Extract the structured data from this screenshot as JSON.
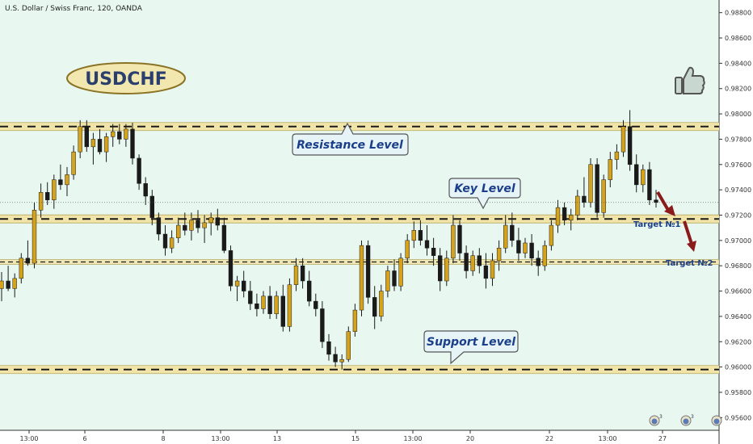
{
  "chart_data": {
    "type": "candlestick",
    "title": "U.S. Dollar / Swiss Franc, 120, OANDA",
    "symbol_badge": "USDCHF",
    "ylim": [
      0.955,
      0.989
    ],
    "y_ticks": [
      "0.98800",
      "0.98600",
      "0.98400",
      "0.98200",
      "0.98000",
      "0.97800",
      "0.97600",
      "0.97400",
      "0.97200",
      "0.97000",
      "0.96800",
      "0.96600",
      "0.96400",
      "0.96200",
      "0.96000",
      "0.95800",
      "0.95600"
    ],
    "x_ticks": [
      "13:00",
      "6",
      "8",
      "13:00",
      "13",
      "15",
      "13:00",
      "20",
      "22",
      "13:00",
      "27"
    ],
    "current_price": 0.973,
    "levels": [
      {
        "name": "Resistance Level",
        "value": 0.979
      },
      {
        "name": "Key Level",
        "value": 0.9717
      },
      {
        "name": "Support Level",
        "value": 0.9598
      },
      {
        "name": "",
        "value": 0.9683
      }
    ],
    "targets": [
      {
        "label": "Target №1",
        "value": 0.9717
      },
      {
        "label": "Target №2",
        "value": 0.9683
      }
    ],
    "colors": {
      "bull": "#d4a21c",
      "bear": "#1a1a1a",
      "background": "#e8f8f1",
      "band": "#f0e4a8",
      "arrow": "#8b1a1a"
    },
    "icon": "thumbs-up-icon",
    "event_badge_count": "3",
    "candles_ohlc": [
      [
        0.9662,
        0.9675,
        0.9652,
        0.9668
      ],
      [
        0.9668,
        0.968,
        0.966,
        0.9662
      ],
      [
        0.9662,
        0.9674,
        0.9655,
        0.967
      ],
      [
        0.967,
        0.969,
        0.9666,
        0.9686
      ],
      [
        0.9686,
        0.97,
        0.968,
        0.9682
      ],
      [
        0.9682,
        0.973,
        0.9678,
        0.9724
      ],
      [
        0.9724,
        0.9745,
        0.9718,
        0.9738
      ],
      [
        0.9738,
        0.9746,
        0.9728,
        0.9732
      ],
      [
        0.9732,
        0.9752,
        0.9725,
        0.9748
      ],
      [
        0.9748,
        0.976,
        0.974,
        0.9744
      ],
      [
        0.9744,
        0.9758,
        0.9735,
        0.9752
      ],
      [
        0.9752,
        0.9775,
        0.9748,
        0.977
      ],
      [
        0.977,
        0.9795,
        0.9765,
        0.979
      ],
      [
        0.979,
        0.9795,
        0.977,
        0.9774
      ],
      [
        0.9774,
        0.9785,
        0.976,
        0.978
      ],
      [
        0.978,
        0.9788,
        0.9768,
        0.977
      ],
      [
        0.977,
        0.9785,
        0.9762,
        0.9782
      ],
      [
        0.9782,
        0.9792,
        0.9774,
        0.9786
      ],
      [
        0.9786,
        0.9792,
        0.9776,
        0.978
      ],
      [
        0.978,
        0.9792,
        0.9774,
        0.9788
      ],
      [
        0.9788,
        0.9793,
        0.976,
        0.9765
      ],
      [
        0.9765,
        0.9768,
        0.974,
        0.9745
      ],
      [
        0.9745,
        0.975,
        0.9728,
        0.9735
      ],
      [
        0.9735,
        0.974,
        0.9712,
        0.9718
      ],
      [
        0.9718,
        0.9722,
        0.97,
        0.9705
      ],
      [
        0.9705,
        0.9712,
        0.9688,
        0.9694
      ],
      [
        0.9694,
        0.9708,
        0.969,
        0.9702
      ],
      [
        0.9702,
        0.9718,
        0.9698,
        0.9712
      ],
      [
        0.9712,
        0.9722,
        0.9704,
        0.9708
      ],
      [
        0.9708,
        0.9722,
        0.97,
        0.9716
      ],
      [
        0.9716,
        0.9724,
        0.9706,
        0.971
      ],
      [
        0.971,
        0.972,
        0.9698,
        0.9714
      ],
      [
        0.9714,
        0.9722,
        0.9704,
        0.9718
      ],
      [
        0.9718,
        0.9725,
        0.9708,
        0.9712
      ],
      [
        0.9712,
        0.9718,
        0.969,
        0.9692
      ],
      [
        0.9692,
        0.9696,
        0.966,
        0.9664
      ],
      [
        0.9664,
        0.9672,
        0.9652,
        0.9668
      ],
      [
        0.9668,
        0.9676,
        0.9655,
        0.966
      ],
      [
        0.966,
        0.9668,
        0.9645,
        0.965
      ],
      [
        0.965,
        0.9658,
        0.964,
        0.9646
      ],
      [
        0.9646,
        0.966,
        0.9642,
        0.9656
      ],
      [
        0.9656,
        0.9664,
        0.9638,
        0.9642
      ],
      [
        0.9642,
        0.966,
        0.9638,
        0.9656
      ],
      [
        0.9656,
        0.9665,
        0.9628,
        0.9632
      ],
      [
        0.9632,
        0.967,
        0.9628,
        0.9665
      ],
      [
        0.9665,
        0.9686,
        0.966,
        0.968
      ],
      [
        0.968,
        0.9686,
        0.9662,
        0.9668
      ],
      [
        0.9668,
        0.9676,
        0.9648,
        0.9652
      ],
      [
        0.9652,
        0.9658,
        0.964,
        0.9646
      ],
      [
        0.9646,
        0.9652,
        0.9615,
        0.962
      ],
      [
        0.962,
        0.9626,
        0.9605,
        0.961
      ],
      [
        0.961,
        0.9616,
        0.96,
        0.9604
      ],
      [
        0.9604,
        0.961,
        0.9598,
        0.9606
      ],
      [
        0.9606,
        0.9632,
        0.9604,
        0.9628
      ],
      [
        0.9628,
        0.965,
        0.9624,
        0.9645
      ],
      [
        0.9645,
        0.97,
        0.964,
        0.9696
      ],
      [
        0.9696,
        0.97,
        0.965,
        0.9655
      ],
      [
        0.9655,
        0.9664,
        0.963,
        0.964
      ],
      [
        0.964,
        0.9665,
        0.9636,
        0.966
      ],
      [
        0.966,
        0.968,
        0.9655,
        0.9676
      ],
      [
        0.9676,
        0.9685,
        0.966,
        0.9664
      ],
      [
        0.9664,
        0.969,
        0.966,
        0.9686
      ],
      [
        0.9686,
        0.9705,
        0.9682,
        0.97
      ],
      [
        0.97,
        0.9715,
        0.9694,
        0.9708
      ],
      [
        0.9708,
        0.9716,
        0.9696,
        0.97
      ],
      [
        0.97,
        0.9712,
        0.9688,
        0.9694
      ],
      [
        0.9694,
        0.9702,
        0.968,
        0.9688
      ],
      [
        0.9688,
        0.9694,
        0.966,
        0.9668
      ],
      [
        0.9668,
        0.9692,
        0.9664,
        0.9686
      ],
      [
        0.9686,
        0.972,
        0.9682,
        0.9712
      ],
      [
        0.9712,
        0.9716,
        0.9684,
        0.969
      ],
      [
        0.969,
        0.9696,
        0.967,
        0.9676
      ],
      [
        0.9676,
        0.9692,
        0.9672,
        0.9688
      ],
      [
        0.9688,
        0.9694,
        0.9674,
        0.968
      ],
      [
        0.968,
        0.969,
        0.9662,
        0.967
      ],
      [
        0.967,
        0.969,
        0.9664,
        0.9684
      ],
      [
        0.9684,
        0.97,
        0.9676,
        0.9694
      ],
      [
        0.9694,
        0.972,
        0.969,
        0.9712
      ],
      [
        0.9712,
        0.9722,
        0.9695,
        0.97
      ],
      [
        0.97,
        0.971,
        0.9684,
        0.969
      ],
      [
        0.969,
        0.9702,
        0.9686,
        0.9698
      ],
      [
        0.9698,
        0.9705,
        0.968,
        0.9686
      ],
      [
        0.9686,
        0.9692,
        0.9672,
        0.968
      ],
      [
        0.968,
        0.97,
        0.9676,
        0.9696
      ],
      [
        0.9696,
        0.9716,
        0.9692,
        0.9712
      ],
      [
        0.9712,
        0.9732,
        0.9706,
        0.9726
      ],
      [
        0.9726,
        0.973,
        0.9712,
        0.9716
      ],
      [
        0.9716,
        0.9725,
        0.9708,
        0.972
      ],
      [
        0.972,
        0.974,
        0.9716,
        0.9735
      ],
      [
        0.9735,
        0.975,
        0.9726,
        0.973
      ],
      [
        0.973,
        0.9765,
        0.9726,
        0.976
      ],
      [
        0.976,
        0.9765,
        0.9718,
        0.9722
      ],
      [
        0.9722,
        0.9752,
        0.9718,
        0.9748
      ],
      [
        0.9748,
        0.977,
        0.9742,
        0.9764
      ],
      [
        0.9764,
        0.9776,
        0.9756,
        0.977
      ],
      [
        0.977,
        0.9795,
        0.9766,
        0.979
      ],
      [
        0.979,
        0.9803,
        0.9755,
        0.976
      ],
      [
        0.976,
        0.9768,
        0.9738,
        0.9744
      ],
      [
        0.9744,
        0.976,
        0.9738,
        0.9756
      ],
      [
        0.9756,
        0.9762,
        0.9728,
        0.9732
      ],
      [
        0.9732,
        0.974,
        0.9726,
        0.973
      ]
    ]
  }
}
